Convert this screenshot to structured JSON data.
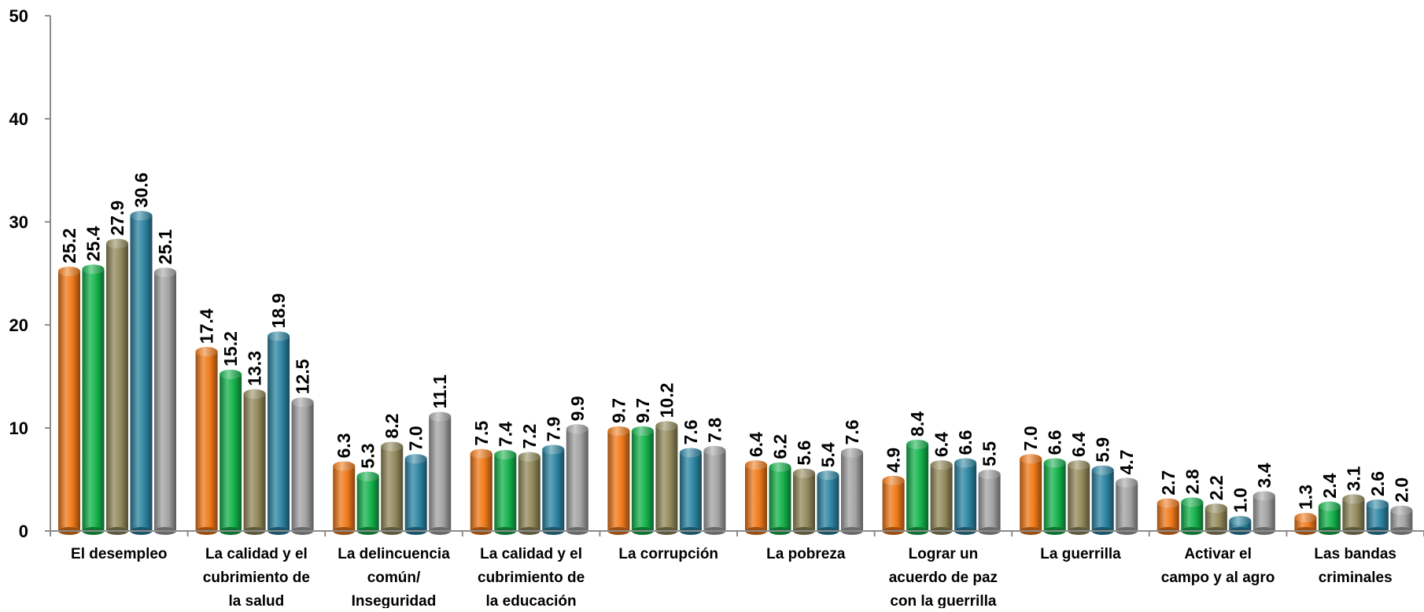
{
  "chart_data": {
    "type": "bar",
    "title": "",
    "xlabel": "",
    "ylabel": "",
    "ylim": [
      0,
      50
    ],
    "yticks": [
      0,
      10,
      20,
      30,
      40,
      50
    ],
    "grid": false,
    "legend": "none",
    "categories": [
      [
        "El desempleo"
      ],
      [
        "La calidad y el",
        "cubrimiento de",
        "la salud"
      ],
      [
        "La delincuencia",
        "común/",
        "Inseguridad"
      ],
      [
        "La calidad y el",
        "cubrimiento de",
        "la educación"
      ],
      [
        "La corrupción"
      ],
      [
        "La pobreza"
      ],
      [
        "Lograr un",
        "acuerdo de paz",
        "con la guerrilla"
      ],
      [
        "La guerrilla"
      ],
      [
        "Activar el",
        "campo y al agro"
      ],
      [
        "Las bandas",
        "criminales"
      ]
    ],
    "series": [
      {
        "color": "#f07a1a",
        "values": [
          25.2,
          17.4,
          6.3,
          7.5,
          9.7,
          6.4,
          4.9,
          7.0,
          2.7,
          1.3
        ]
      },
      {
        "color": "#15b34c",
        "values": [
          25.4,
          15.2,
          5.3,
          7.4,
          9.7,
          6.2,
          8.4,
          6.6,
          2.8,
          2.4
        ]
      },
      {
        "color": "#948a5c",
        "values": [
          27.9,
          13.3,
          8.2,
          7.2,
          10.2,
          5.6,
          6.4,
          6.4,
          2.2,
          3.1
        ]
      },
      {
        "color": "#2d85a3",
        "values": [
          30.6,
          18.9,
          7.0,
          7.9,
          7.6,
          5.4,
          6.6,
          5.9,
          1.0,
          2.6
        ]
      },
      {
        "color": "#a3a3a3",
        "values": [
          25.1,
          12.5,
          11.1,
          9.9,
          7.8,
          7.6,
          5.5,
          4.7,
          3.4,
          2.0
        ]
      }
    ]
  }
}
